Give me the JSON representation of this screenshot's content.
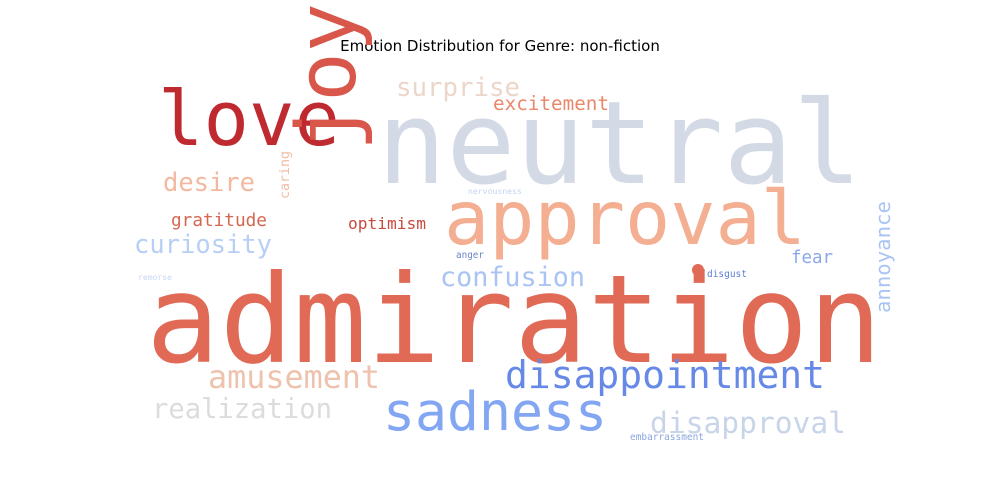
{
  "chart_data": {
    "type": "wordcloud",
    "title": "Emotion Distribution for Genre: non-fiction",
    "words": [
      {
        "text": "admiration",
        "weight": 1.0,
        "color": "#e06a56"
      },
      {
        "text": "neutral",
        "weight": 0.85,
        "color": "#d3dae6"
      },
      {
        "text": "love",
        "weight": 0.55,
        "color": "#bf2a30"
      },
      {
        "text": "approval",
        "weight": 0.55,
        "color": "#f4af92"
      },
      {
        "text": "joy",
        "weight": 0.45,
        "color": "#d9574a"
      },
      {
        "text": "sadness",
        "weight": 0.38,
        "color": "#82a6f2"
      },
      {
        "text": "disappointment",
        "weight": 0.32,
        "color": "#6688e6"
      },
      {
        "text": "disapproval",
        "weight": 0.26,
        "color": "#c8d4e8"
      },
      {
        "text": "amusement",
        "weight": 0.25,
        "color": "#eec3ad"
      },
      {
        "text": "confusion",
        "weight": 0.21,
        "color": "#a9c4f4"
      },
      {
        "text": "realization",
        "weight": 0.22,
        "color": "#dcdcdc"
      },
      {
        "text": "curiosity",
        "weight": 0.21,
        "color": "#b8cff5"
      },
      {
        "text": "surprise",
        "weight": 0.21,
        "color": "#ecd5c9"
      },
      {
        "text": "desire",
        "weight": 0.2,
        "color": "#f3b9a0"
      },
      {
        "text": "excitement",
        "weight": 0.16,
        "color": "#e9876a"
      },
      {
        "text": "gratitude",
        "weight": 0.16,
        "color": "#d66650"
      },
      {
        "text": "optimism",
        "weight": 0.14,
        "color": "#c94a3e"
      },
      {
        "text": "annoyance",
        "weight": 0.17,
        "color": "#a9c4f4"
      },
      {
        "text": "fear",
        "weight": 0.14,
        "color": "#8aa8e8"
      },
      {
        "text": "caring",
        "weight": 0.08,
        "color": "#f0bca4"
      },
      {
        "text": "disgust",
        "weight": 0.06,
        "color": "#5b7fd8"
      },
      {
        "text": "anger",
        "weight": 0.05,
        "color": "#6b86c4"
      },
      {
        "text": "nervousness",
        "weight": 0.04,
        "color": "#c4d4f2"
      },
      {
        "text": "remorse",
        "weight": 0.04,
        "color": "#c6d6f5"
      },
      {
        "text": "embarrassment",
        "weight": 0.05,
        "color": "#8aa6e0"
      }
    ]
  }
}
